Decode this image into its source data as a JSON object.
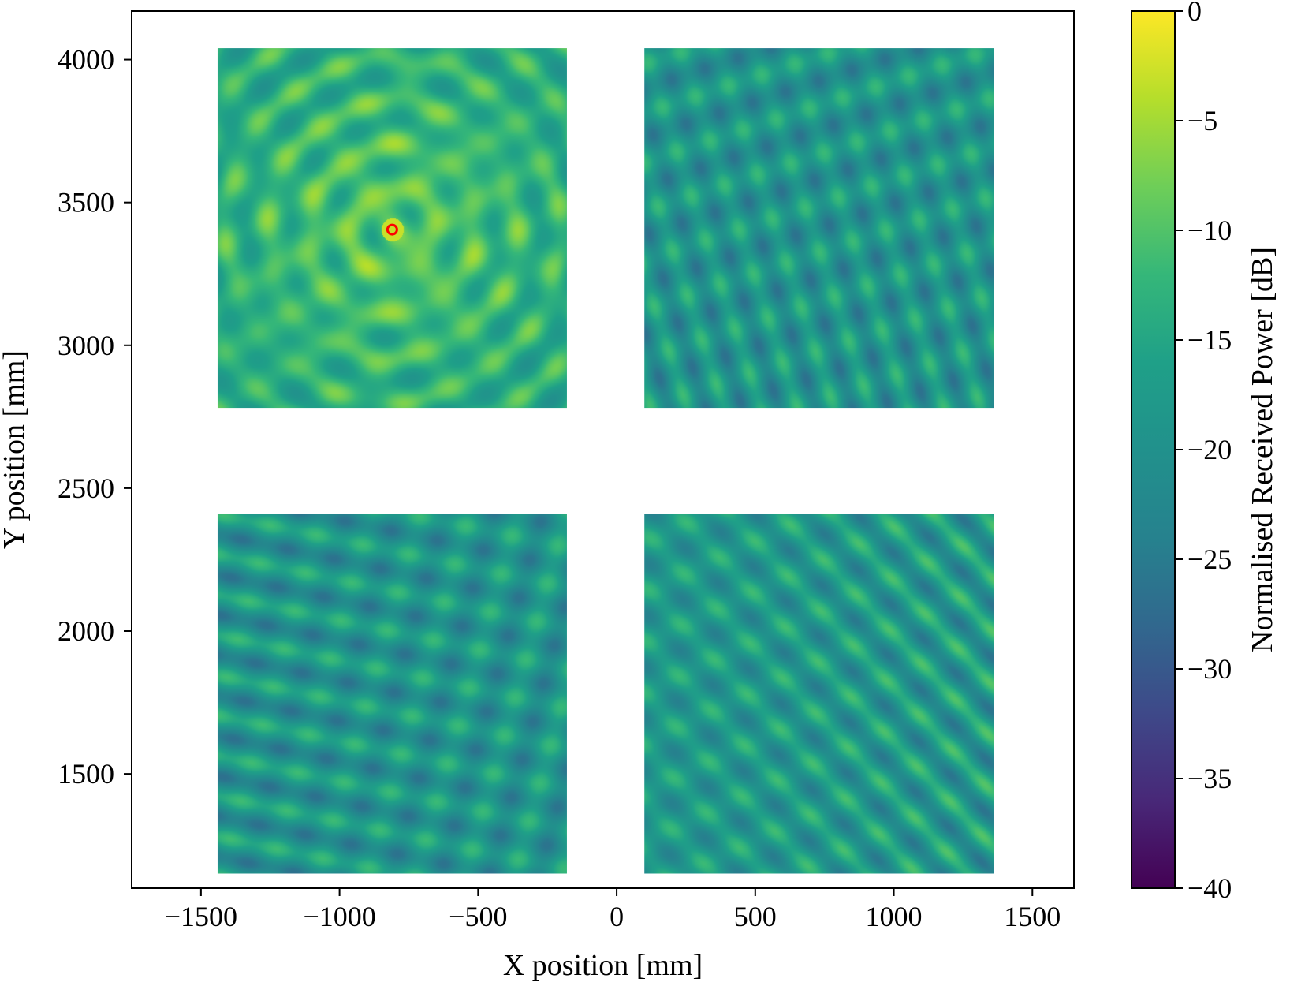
{
  "chart_data": {
    "type": "heatmap",
    "title": "",
    "xlabel": "X position [mm]",
    "ylabel": "Y position [mm]",
    "xlim": [
      -1750,
      1650
    ],
    "ylim": [
      1100,
      4170
    ],
    "x_ticks": [
      -1500,
      -1000,
      -500,
      0,
      500,
      1000,
      1500
    ],
    "x_tick_labels": [
      "−1500",
      "−1000",
      "−500",
      "0",
      "500",
      "1000",
      "1500"
    ],
    "y_ticks": [
      1500,
      2000,
      2500,
      3000,
      3500,
      4000
    ],
    "y_tick_labels": [
      "1500",
      "2000",
      "2500",
      "3000",
      "3500",
      "4000"
    ],
    "colormap": "viridis",
    "colorbar": {
      "label": "Normalised Received Power [dB]",
      "range": [
        -40,
        0
      ],
      "ticks": [
        0,
        -5,
        -10,
        -15,
        -20,
        -25,
        -30,
        -35,
        -40
      ],
      "tick_labels": [
        "0",
        "−5",
        "−10",
        "−15",
        "−20",
        "−25",
        "−30",
        "−35",
        "−40"
      ]
    },
    "panels": [
      {
        "name": "top-left",
        "x_range": [
          -1440,
          -180
        ],
        "y_range": [
          2780,
          4040
        ],
        "mean_db": -14,
        "pattern": "radial",
        "center": [
          -810,
          3405
        ],
        "peak_db": -3
      },
      {
        "name": "top-right",
        "x_range": [
          100,
          1360
        ],
        "y_range": [
          2780,
          4040
        ],
        "mean_db": -19,
        "pattern": "diagonal"
      },
      {
        "name": "bottom-left",
        "x_range": [
          -1440,
          -180
        ],
        "y_range": [
          1150,
          2410
        ],
        "mean_db": -19,
        "pattern": "horizontal"
      },
      {
        "name": "bottom-right",
        "x_range": [
          100,
          1360
        ],
        "y_range": [
          1150,
          2410
        ],
        "mean_db": -18,
        "pattern": "diagonal-steep"
      }
    ],
    "marker": {
      "x": -810,
      "y": 3405,
      "color": "#ff0000"
    },
    "grid": false,
    "legend": "none"
  }
}
